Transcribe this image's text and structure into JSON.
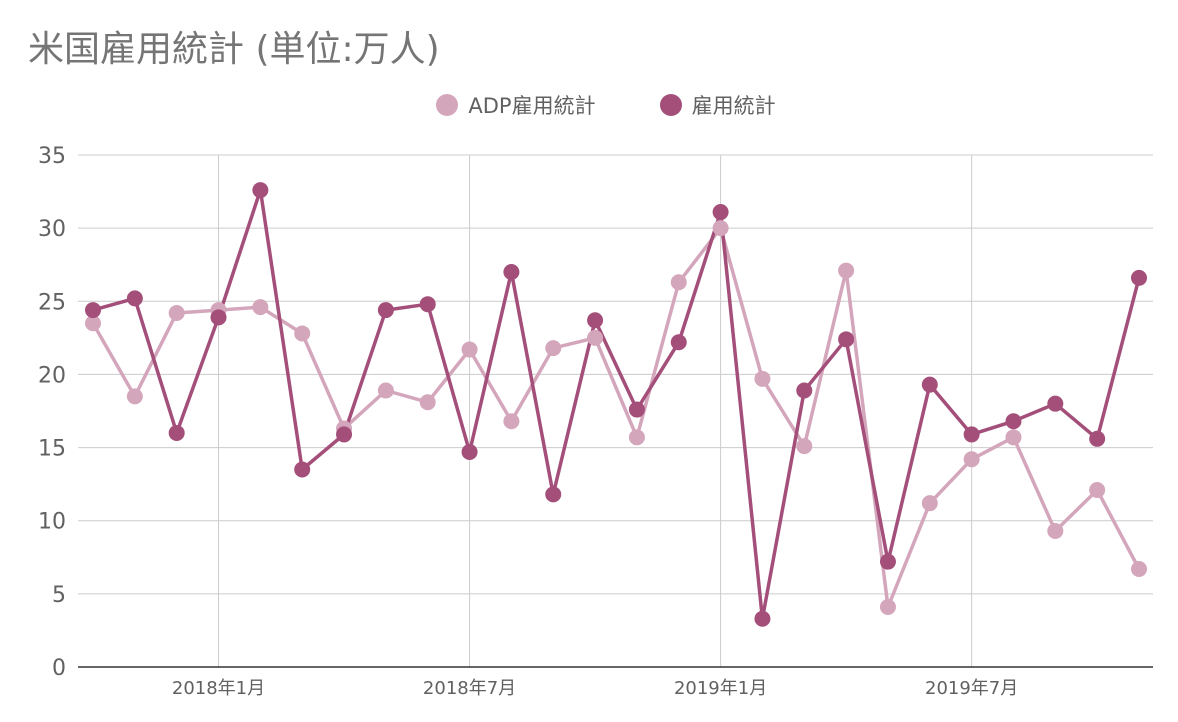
{
  "chart_data": {
    "type": "line",
    "title": "米国雇用統計 (単位:万人)",
    "ylim": [
      0,
      35
    ],
    "y_ticks": [
      "0",
      "5",
      "10",
      "15",
      "20",
      "25",
      "30",
      "35"
    ],
    "x_tick_labels": [
      "2018年1月",
      "2018年7月",
      "2019年1月",
      "2019年7月"
    ],
    "x_tick_indices": [
      3,
      9,
      15,
      21
    ],
    "grid": true,
    "legend_position": "top-center",
    "series": [
      {
        "name": "ADP雇用統計",
        "color": "#d4a6bc",
        "values": [
          23.5,
          18.5,
          24.2,
          24.4,
          24.6,
          22.8,
          16.3,
          18.9,
          18.1,
          21.7,
          16.8,
          21.8,
          22.5,
          15.7,
          26.3,
          30.0,
          19.7,
          15.1,
          27.1,
          4.1,
          11.2,
          14.2,
          15.7,
          9.3,
          12.1,
          6.7
        ]
      },
      {
        "name": "雇用統計",
        "color": "#a34f7a",
        "values": [
          24.4,
          25.2,
          16.0,
          23.9,
          32.6,
          13.5,
          15.9,
          24.4,
          24.8,
          14.7,
          27.0,
          11.8,
          23.7,
          17.6,
          22.2,
          31.1,
          3.3,
          18.9,
          22.4,
          7.2,
          19.3,
          15.9,
          16.8,
          18.0,
          15.6,
          26.6
        ]
      }
    ]
  }
}
